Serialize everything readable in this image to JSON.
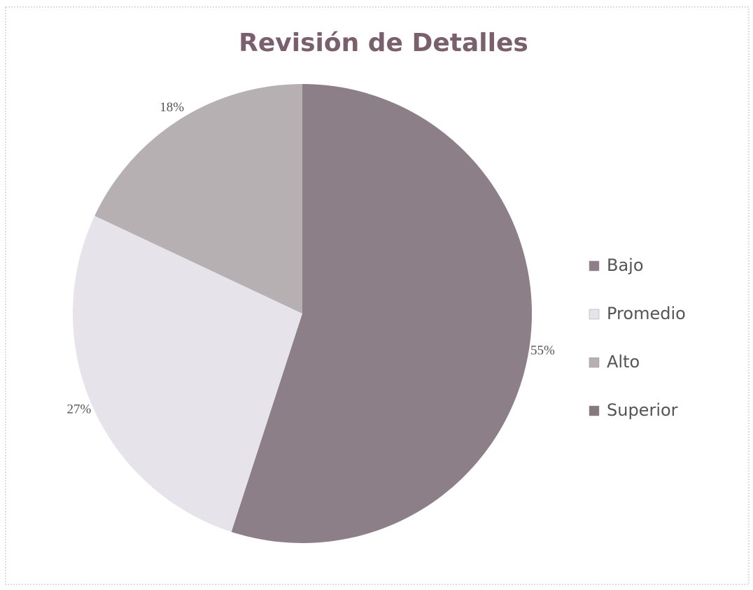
{
  "chart_data": {
    "type": "pie",
    "title": "Revisión de Detalles",
    "categories": [
      "Bajo",
      "Promedio",
      "Alto",
      "Superior"
    ],
    "values": [
      55,
      27,
      18,
      0
    ],
    "value_labels": [
      "55%",
      "27%",
      "18%",
      null
    ],
    "colors": [
      "#8d7f88",
      "#e6e4ea",
      "#b7b0b3",
      "#85797f"
    ],
    "legend": "right"
  }
}
